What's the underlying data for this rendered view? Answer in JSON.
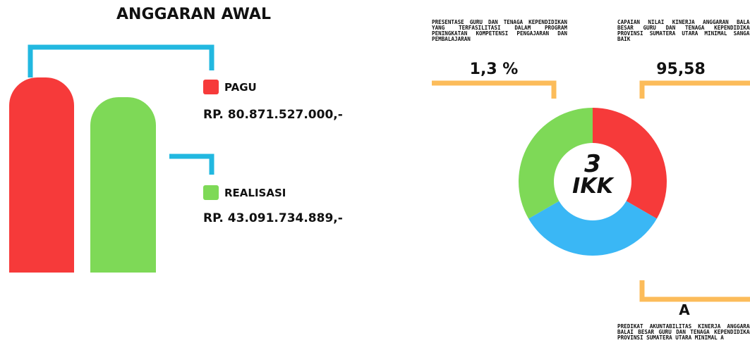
{
  "budget": {
    "title": "ANGGARAN AWAL",
    "items": [
      {
        "label": "PAGU",
        "amount": "RP. 80.871.527.000,-"
      },
      {
        "label": "REALISASI",
        "amount": "RP. 43.091.734.889,-"
      }
    ]
  },
  "indicators": {
    "center_number": "3",
    "center_label": "IKK",
    "items": [
      {
        "description": "PRESENTASE GURU DAN TENAGA KEPENDIDIKAN YANG TERFASILITASI DALAM PROGRAM PENINGKATAN KOMPETENSI PENGAJARAN DAN PEMBALAJARAN",
        "value": "1,3 %"
      },
      {
        "description": "CAPAIAN NILAI KINERJA ANGGARAN BALAI BESAR GURU DAN TENAGA KEPENDIDIKAN PROVINSI SUMATERA UTARA MINIMAL SANGAT BAIK",
        "value": "95,58"
      },
      {
        "description": "PREDIKAT AKUNTABILITAS KINERJA ANGGARAN BALAI BESAR GURU DAN TENAGA KEPENDIDIKAN PROVINSI SUMATERA UTARA MINIMAL A",
        "value": "A"
      }
    ]
  }
}
